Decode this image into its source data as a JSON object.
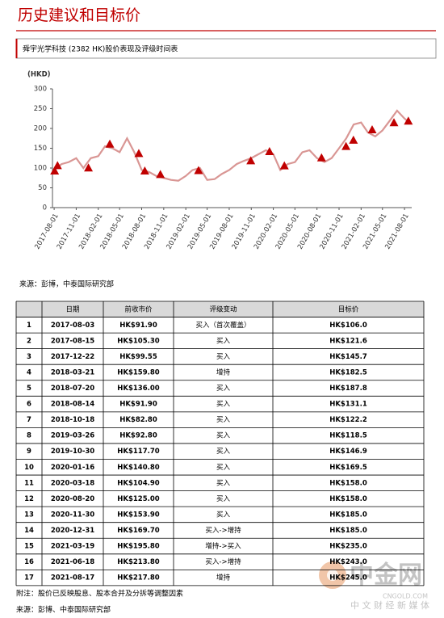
{
  "header": {
    "title": "历史建议和目标价",
    "subtitle": "舜宇光学科技 (2382 HK)股价表现及评级时间表"
  },
  "chart_data": {
    "type": "line",
    "y_label": "(HKD)",
    "ylim": [
      0,
      300
    ],
    "yticks": [
      0,
      50,
      100,
      150,
      200,
      250,
      300
    ],
    "xlim": [
      "2017-07-25",
      "2021-08-31"
    ],
    "xticks": [
      "2017-08-01",
      "2017-11-01",
      "2018-02-01",
      "2018-05-01",
      "2018-08-01",
      "2018-11-01",
      "2019-02-01",
      "2019-05-01",
      "2019-08-01",
      "2019-11-01",
      "2020-02-01",
      "2020-05-01",
      "2020-08-01",
      "2020-11-01",
      "2021-02-01",
      "2021-05-01",
      "2021-08-01"
    ],
    "grid": true,
    "line": {
      "color": "#d99694",
      "x": [
        "2017-08-01",
        "2017-09-01",
        "2017-10-01",
        "2017-11-01",
        "2017-12-01",
        "2018-01-01",
        "2018-02-01",
        "2018-03-01",
        "2018-04-01",
        "2018-05-01",
        "2018-06-01",
        "2018-07-01",
        "2018-08-01",
        "2018-09-01",
        "2018-10-01",
        "2018-11-01",
        "2018-12-01",
        "2019-01-01",
        "2019-02-01",
        "2019-03-01",
        "2019-04-01",
        "2019-05-01",
        "2019-06-01",
        "2019-07-01",
        "2019-08-01",
        "2019-09-01",
        "2019-10-01",
        "2019-11-01",
        "2019-12-01",
        "2020-01-01",
        "2020-02-01",
        "2020-03-01",
        "2020-04-01",
        "2020-05-01",
        "2020-06-01",
        "2020-07-01",
        "2020-08-01",
        "2020-09-01",
        "2020-10-01",
        "2020-11-01",
        "2020-12-01",
        "2021-01-01",
        "2021-02-01",
        "2021-03-01",
        "2021-04-01",
        "2021-05-01",
        "2021-06-01",
        "2021-07-01",
        "2021-08-01",
        "2021-08-20"
      ],
      "values": [
        95,
        110,
        115,
        125,
        100,
        125,
        130,
        155,
        150,
        140,
        175,
        140,
        95,
        90,
        80,
        75,
        70,
        68,
        80,
        95,
        100,
        70,
        72,
        85,
        95,
        110,
        118,
        125,
        135,
        145,
        135,
        95,
        110,
        115,
        140,
        145,
        125,
        115,
        125,
        150,
        175,
        210,
        215,
        190,
        180,
        195,
        220,
        245,
        225,
        215
      ]
    },
    "markers": {
      "color": "#c00000",
      "x": [
        "2017-08-03",
        "2017-08-15",
        "2017-12-22",
        "2018-03-21",
        "2018-07-20",
        "2018-08-14",
        "2018-10-18",
        "2019-03-26",
        "2019-10-30",
        "2020-01-16",
        "2020-03-18",
        "2020-08-20",
        "2020-11-30",
        "2020-12-31",
        "2021-03-19",
        "2021-06-18",
        "2021-08-17"
      ],
      "values": [
        91.9,
        105.3,
        99.55,
        159.8,
        136.0,
        91.9,
        82.8,
        92.8,
        117.7,
        140.8,
        104.9,
        125.0,
        153.9,
        169.7,
        195.8,
        213.8,
        217.8
      ]
    }
  },
  "source1": "来源：彭博，中泰国际研究部",
  "table": {
    "header": [
      "",
      "日期",
      "前收市价",
      "评级变动",
      "目标价"
    ],
    "rows": [
      [
        "1",
        "2017-08-03",
        "HK$91.90",
        "买入（首次覆盖）",
        "HK$106.0"
      ],
      [
        "2",
        "2017-08-15",
        "HK$105.30",
        "买入",
        "HK$121.6"
      ],
      [
        "3",
        "2017-12-22",
        "HK$99.55",
        "买入",
        "HK$145.7"
      ],
      [
        "4",
        "2018-03-21",
        "HK$159.80",
        "增持",
        "HK$182.5"
      ],
      [
        "5",
        "2018-07-20",
        "HK$136.00",
        "买入",
        "HK$187.8"
      ],
      [
        "6",
        "2018-08-14",
        "HK$91.90",
        "买入",
        "HK$131.1"
      ],
      [
        "7",
        "2018-10-18",
        "HK$82.80",
        "买入",
        "HK$122.2"
      ],
      [
        "8",
        "2019-03-26",
        "HK$92.80",
        "买入",
        "HK$118.5"
      ],
      [
        "9",
        "2019-10-30",
        "HK$117.70",
        "买入",
        "HK$146.9"
      ],
      [
        "10",
        "2020-01-16",
        "HK$140.80",
        "买入",
        "HK$169.5"
      ],
      [
        "11",
        "2020-03-18",
        "HK$104.90",
        "买入",
        "HK$158.0"
      ],
      [
        "12",
        "2020-08-20",
        "HK$125.00",
        "买入",
        "HK$158.0"
      ],
      [
        "13",
        "2020-11-30",
        "HK$153.90",
        "买入",
        "HK$185.0"
      ],
      [
        "14",
        "2020-12-31",
        "HK$169.70",
        "买入->增持",
        "HK$185.0"
      ],
      [
        "15",
        "2021-03-19",
        "HK$195.80",
        "增持->买入",
        "HK$235.0"
      ],
      [
        "16",
        "2021-06-18",
        "HK$213.80",
        "买入->增持",
        "HK$243.0"
      ],
      [
        "17",
        "2021-08-17",
        "HK$217.80",
        "增持",
        "HK$245.0"
      ]
    ]
  },
  "note": "附注：股价已反映股息、股本合并及分拆等调整因素",
  "source2": "来源：彭博、中泰国际研究部",
  "watermark": {
    "logo": "中金网",
    "site": "CNGOLD.COM",
    "slogan": "中 文 财 经 新 媒 体"
  }
}
